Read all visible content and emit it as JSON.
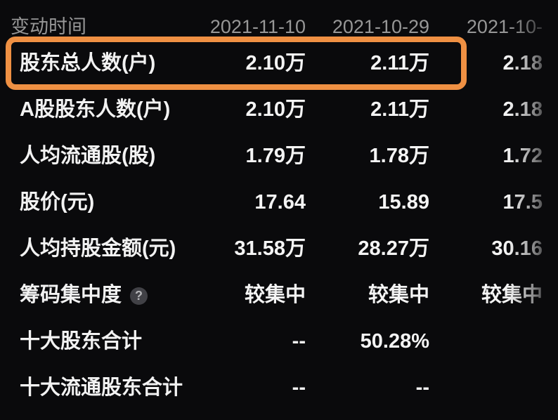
{
  "table": {
    "header": {
      "label": "变动时间",
      "col1": "2021-11-10",
      "col2": "2021-10-29",
      "col3": "2021-10-"
    },
    "rows": [
      {
        "label": "股东总人数(户)",
        "c1": "2.10万",
        "c2": "2.11万",
        "c3": "2.18",
        "highlighted": true
      },
      {
        "label": "A股股东人数(户)",
        "c1": "2.10万",
        "c2": "2.11万",
        "c3": "2.18"
      },
      {
        "label": "人均流通股(股)",
        "c1": "1.79万",
        "c2": "1.78万",
        "c3": "1.72"
      },
      {
        "label": "股价(元)",
        "c1": "17.64",
        "c2": "15.89",
        "c3": "17.5"
      },
      {
        "label": "人均持股金额(元)",
        "c1": "31.58万",
        "c2": "28.27万",
        "c3": "30.16"
      },
      {
        "label": "筹码集中度",
        "c1": "较集中",
        "c2": "较集中",
        "c3": "较集中",
        "has_help": true
      },
      {
        "label": "十大股东合计",
        "c1": "--",
        "c2": "50.28%",
        "c3": ""
      },
      {
        "label": "十大流通股东合计",
        "c1": "--",
        "c2": "--",
        "c3": ""
      }
    ],
    "help_icon_glyph": "?"
  },
  "colors": {
    "background": "#0a0a0c",
    "value_text": "#f4f4f4",
    "header_text": "#979797",
    "highlight_border": "#EF9043",
    "help_icon_bg": "#414146",
    "help_icon_fg": "#b5b5b8"
  }
}
